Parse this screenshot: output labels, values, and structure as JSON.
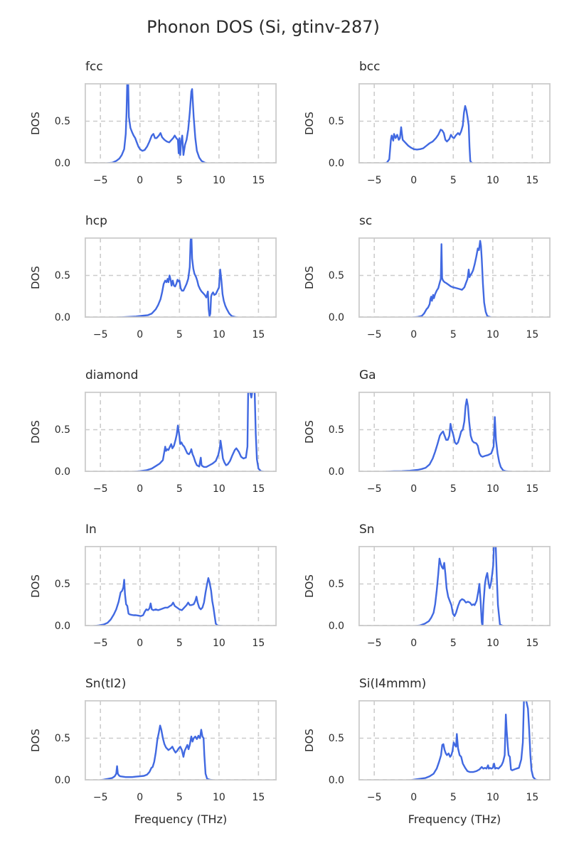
{
  "figure": {
    "title": "Phonon DOS (Si, gtinv-287)",
    "xlabel": "Frequency (THz)",
    "ylabel": "DOS",
    "line_color": "#4169e1",
    "grid_color": "#cccccc",
    "frame_color": "#cccccc",
    "text_color": "#2b2b2b",
    "background": "#ffffff",
    "axes": {
      "xlim": [
        -7,
        17.3
      ],
      "ylim": [
        0,
        0.95
      ],
      "x_tick_values": [
        -5,
        0,
        5,
        10,
        15
      ],
      "x_tick_labels": [
        "−5",
        "0",
        "5",
        "10",
        "15"
      ],
      "y_tick_values": [
        0,
        0.5
      ],
      "y_tick_labels": [
        "0.0",
        "0.5"
      ],
      "grid": true,
      "grid_style": "dashed"
    },
    "layout": "5 rows x 2 columns, shared style, legend none"
  },
  "chart_data": [
    {
      "type": "line",
      "title": "fcc",
      "x": [
        -4.5,
        -3.5,
        -3.0,
        -2.6,
        -2.3,
        -2.0,
        -1.8,
        -1.7,
        -1.6,
        -1.5,
        -1.4,
        -1.2,
        -1.0,
        -0.8,
        -0.6,
        -0.4,
        -0.2,
        0.0,
        0.3,
        0.6,
        0.9,
        1.2,
        1.5,
        1.7,
        1.9,
        2.1,
        2.4,
        2.6,
        2.8,
        3.1,
        3.4,
        3.7,
        4.0,
        4.2,
        4.4,
        4.6,
        4.8,
        4.9,
        5.0,
        5.1,
        5.2,
        5.35,
        5.5,
        5.7,
        5.9,
        6.1,
        6.3,
        6.5,
        6.6,
        6.8,
        7.0,
        7.2,
        7.5,
        7.8,
        8.2,
        8.6,
        9.0
      ],
      "y": [
        0.0,
        0.01,
        0.03,
        0.06,
        0.1,
        0.17,
        0.35,
        0.6,
        1.0,
        1.0,
        0.55,
        0.42,
        0.37,
        0.33,
        0.3,
        0.25,
        0.2,
        0.17,
        0.15,
        0.16,
        0.2,
        0.26,
        0.33,
        0.35,
        0.3,
        0.3,
        0.33,
        0.36,
        0.31,
        0.28,
        0.26,
        0.25,
        0.28,
        0.3,
        0.33,
        0.3,
        0.28,
        0.12,
        0.3,
        0.1,
        0.25,
        0.33,
        0.1,
        0.22,
        0.28,
        0.4,
        0.6,
        0.85,
        0.88,
        0.55,
        0.3,
        0.15,
        0.07,
        0.03,
        0.01,
        0.0,
        0.0
      ]
    },
    {
      "type": "line",
      "title": "bcc",
      "x": [
        -4.0,
        -3.4,
        -3.1,
        -2.9,
        -2.8,
        -2.6,
        -2.5,
        -2.3,
        -2.1,
        -1.9,
        -1.75,
        -1.6,
        -1.5,
        -1.4,
        -1.2,
        -1.0,
        -0.7,
        -0.4,
        0.0,
        0.4,
        0.8,
        1.2,
        1.6,
        2.0,
        2.4,
        2.8,
        3.1,
        3.4,
        3.6,
        3.8,
        4.0,
        4.2,
        4.5,
        4.7,
        4.9,
        5.1,
        5.3,
        5.6,
        5.8,
        6.0,
        6.2,
        6.35,
        6.5,
        6.65,
        6.8,
        6.95,
        7.05,
        7.15,
        7.3,
        7.6,
        8.2
      ],
      "y": [
        0.0,
        0.01,
        0.05,
        0.28,
        0.33,
        0.27,
        0.35,
        0.3,
        0.34,
        0.28,
        0.3,
        0.43,
        0.35,
        0.28,
        0.26,
        0.24,
        0.21,
        0.19,
        0.17,
        0.165,
        0.17,
        0.18,
        0.21,
        0.24,
        0.26,
        0.3,
        0.34,
        0.4,
        0.39,
        0.36,
        0.28,
        0.26,
        0.29,
        0.34,
        0.31,
        0.3,
        0.33,
        0.36,
        0.34,
        0.38,
        0.45,
        0.6,
        0.68,
        0.63,
        0.55,
        0.45,
        0.2,
        0.03,
        0.01,
        0.0,
        0.0
      ]
    },
    {
      "type": "line",
      "title": "hcp",
      "x": [
        -3.5,
        -2.5,
        -1.5,
        -0.5,
        0.0,
        0.5,
        1.0,
        1.5,
        2.0,
        2.3,
        2.6,
        2.8,
        3.0,
        3.2,
        3.35,
        3.5,
        3.6,
        3.75,
        3.9,
        4.0,
        4.15,
        4.3,
        4.45,
        4.6,
        4.75,
        4.9,
        5.0,
        5.15,
        5.3,
        5.5,
        5.7,
        5.9,
        6.1,
        6.3,
        6.4,
        6.5,
        6.6,
        6.75,
        6.9,
        7.1,
        7.25,
        7.4,
        7.6,
        7.8,
        8.0,
        8.2,
        8.4,
        8.6,
        8.7,
        8.8,
        8.9,
        9.0,
        9.1,
        9.25,
        9.4,
        9.6,
        9.8,
        10.0,
        10.15,
        10.3,
        10.45,
        10.6,
        10.8,
        11.0,
        11.3,
        11.6,
        12.0,
        12.5
      ],
      "y": [
        0.0,
        0.005,
        0.01,
        0.015,
        0.02,
        0.025,
        0.03,
        0.05,
        0.1,
        0.15,
        0.22,
        0.3,
        0.4,
        0.44,
        0.42,
        0.46,
        0.42,
        0.5,
        0.44,
        0.38,
        0.44,
        0.38,
        0.37,
        0.4,
        0.45,
        0.43,
        0.44,
        0.35,
        0.32,
        0.32,
        0.36,
        0.4,
        0.46,
        0.6,
        0.9,
        1.0,
        0.7,
        0.58,
        0.52,
        0.48,
        0.44,
        0.38,
        0.34,
        0.31,
        0.29,
        0.27,
        0.24,
        0.31,
        0.1,
        0.02,
        0.05,
        0.25,
        0.28,
        0.3,
        0.27,
        0.28,
        0.32,
        0.36,
        0.57,
        0.45,
        0.28,
        0.2,
        0.14,
        0.1,
        0.05,
        0.02,
        0.01,
        0.0
      ]
    },
    {
      "type": "line",
      "title": "sc",
      "x": [
        -0.5,
        0.5,
        1.0,
        1.3,
        1.6,
        1.8,
        2.0,
        2.1,
        2.2,
        2.3,
        2.45,
        2.55,
        2.7,
        2.9,
        3.1,
        3.3,
        3.42,
        3.5,
        3.58,
        3.7,
        3.9,
        4.1,
        4.4,
        4.7,
        5.0,
        5.4,
        5.8,
        6.1,
        6.4,
        6.6,
        6.8,
        6.95,
        7.05,
        7.15,
        7.3,
        7.5,
        7.7,
        7.9,
        8.1,
        8.25,
        8.4,
        8.5,
        8.6,
        8.75,
        8.9,
        9.1,
        9.3,
        9.6,
        10.0
      ],
      "y": [
        0.0,
        0.01,
        0.02,
        0.05,
        0.1,
        0.12,
        0.16,
        0.22,
        0.25,
        0.2,
        0.27,
        0.23,
        0.28,
        0.32,
        0.35,
        0.42,
        0.46,
        0.87,
        0.47,
        0.44,
        0.42,
        0.41,
        0.39,
        0.37,
        0.36,
        0.35,
        0.34,
        0.33,
        0.36,
        0.41,
        0.46,
        0.57,
        0.48,
        0.5,
        0.52,
        0.56,
        0.63,
        0.72,
        0.82,
        0.8,
        0.91,
        0.85,
        0.7,
        0.4,
        0.18,
        0.07,
        0.02,
        0.01,
        0.0
      ]
    },
    {
      "type": "line",
      "title": "diamond",
      "x": [
        -1.0,
        0.0,
        0.8,
        1.5,
        2.0,
        2.5,
        2.9,
        3.2,
        3.3,
        3.45,
        3.6,
        3.8,
        3.95,
        4.1,
        4.3,
        4.5,
        4.65,
        4.8,
        4.9,
        5.0,
        5.1,
        5.25,
        5.4,
        5.6,
        5.8,
        6.0,
        6.2,
        6.4,
        6.5,
        6.65,
        6.8,
        7.0,
        7.2,
        7.5,
        7.7,
        7.8,
        7.9,
        8.1,
        8.4,
        8.8,
        9.2,
        9.6,
        9.9,
        10.1,
        10.2,
        10.35,
        10.5,
        10.7,
        10.9,
        11.1,
        11.4,
        11.7,
        12.0,
        12.2,
        12.5,
        12.8,
        13.1,
        13.4,
        13.6,
        13.7,
        13.8,
        14.1,
        14.3,
        14.5,
        14.65,
        14.8,
        15.0,
        15.3,
        16.0
      ],
      "y": [
        0.0,
        0.01,
        0.02,
        0.04,
        0.07,
        0.1,
        0.14,
        0.3,
        0.25,
        0.27,
        0.26,
        0.3,
        0.33,
        0.28,
        0.31,
        0.38,
        0.44,
        0.55,
        0.48,
        0.42,
        0.33,
        0.35,
        0.32,
        0.3,
        0.26,
        0.22,
        0.21,
        0.24,
        0.27,
        0.21,
        0.18,
        0.12,
        0.08,
        0.065,
        0.17,
        0.08,
        0.07,
        0.06,
        0.06,
        0.08,
        0.1,
        0.13,
        0.2,
        0.28,
        0.37,
        0.27,
        0.16,
        0.11,
        0.08,
        0.09,
        0.13,
        0.2,
        0.26,
        0.28,
        0.24,
        0.18,
        0.16,
        0.17,
        0.3,
        1.0,
        1.0,
        0.88,
        1.0,
        1.0,
        0.45,
        0.15,
        0.04,
        0.01,
        0.0
      ]
    },
    {
      "type": "line",
      "title": "Ga",
      "x": [
        -3.5,
        -2.5,
        -1.5,
        -0.5,
        0.0,
        0.5,
        1.0,
        1.5,
        2.0,
        2.4,
        2.7,
        3.0,
        3.3,
        3.5,
        3.7,
        3.9,
        4.1,
        4.3,
        4.5,
        4.65,
        4.8,
        5.0,
        5.2,
        5.4,
        5.6,
        5.8,
        6.0,
        6.2,
        6.4,
        6.55,
        6.7,
        6.85,
        7.0,
        7.2,
        7.4,
        7.6,
        7.9,
        8.1,
        8.3,
        8.5,
        8.7,
        9.0,
        9.4,
        9.8,
        10.1,
        10.25,
        10.4,
        10.6,
        10.8,
        11.0,
        11.3,
        11.6,
        12.2,
        12.6
      ],
      "y": [
        0.005,
        0.008,
        0.01,
        0.015,
        0.02,
        0.025,
        0.035,
        0.05,
        0.09,
        0.16,
        0.24,
        0.33,
        0.43,
        0.46,
        0.48,
        0.43,
        0.38,
        0.38,
        0.43,
        0.57,
        0.5,
        0.44,
        0.35,
        0.33,
        0.35,
        0.41,
        0.48,
        0.5,
        0.6,
        0.78,
        0.86,
        0.78,
        0.6,
        0.43,
        0.37,
        0.35,
        0.34,
        0.31,
        0.22,
        0.19,
        0.18,
        0.19,
        0.2,
        0.22,
        0.3,
        0.65,
        0.38,
        0.22,
        0.12,
        0.06,
        0.02,
        0.01,
        0.005,
        0.0
      ]
    },
    {
      "type": "line",
      "title": "In",
      "x": [
        -6.0,
        -5.2,
        -4.6,
        -4.1,
        -3.7,
        -3.3,
        -3.0,
        -2.7,
        -2.45,
        -2.25,
        -2.1,
        -2.0,
        -1.9,
        -1.75,
        -1.6,
        -1.45,
        -1.3,
        -1.1,
        -0.8,
        -0.5,
        -0.2,
        0.1,
        0.4,
        0.6,
        0.8,
        1.0,
        1.2,
        1.35,
        1.5,
        1.7,
        2.0,
        2.3,
        2.6,
        2.9,
        3.2,
        3.5,
        3.8,
        4.0,
        4.2,
        4.4,
        4.7,
        5.0,
        5.3,
        5.6,
        5.9,
        6.1,
        6.3,
        6.5,
        6.8,
        7.0,
        7.15,
        7.3,
        7.5,
        7.7,
        7.9,
        8.1,
        8.3,
        8.5,
        8.65,
        8.8,
        9.0,
        9.15,
        9.3,
        9.45,
        9.6,
        9.8,
        10.2,
        10.8
      ],
      "y": [
        0.0,
        0.01,
        0.02,
        0.04,
        0.08,
        0.14,
        0.2,
        0.29,
        0.4,
        0.42,
        0.46,
        0.55,
        0.38,
        0.26,
        0.24,
        0.15,
        0.14,
        0.135,
        0.13,
        0.13,
        0.125,
        0.12,
        0.13,
        0.17,
        0.2,
        0.19,
        0.21,
        0.27,
        0.2,
        0.19,
        0.2,
        0.19,
        0.2,
        0.21,
        0.22,
        0.22,
        0.24,
        0.25,
        0.28,
        0.24,
        0.22,
        0.2,
        0.19,
        0.22,
        0.25,
        0.28,
        0.25,
        0.25,
        0.26,
        0.3,
        0.35,
        0.28,
        0.22,
        0.2,
        0.22,
        0.28,
        0.4,
        0.5,
        0.57,
        0.52,
        0.42,
        0.3,
        0.22,
        0.12,
        0.03,
        0.01,
        0.005,
        0.0
      ]
    },
    {
      "type": "line",
      "title": "Sn",
      "x": [
        0.0,
        0.8,
        1.4,
        1.9,
        2.2,
        2.5,
        2.7,
        2.9,
        3.1,
        3.25,
        3.4,
        3.55,
        3.7,
        3.85,
        4.0,
        4.15,
        4.35,
        4.55,
        4.75,
        4.95,
        5.15,
        5.35,
        5.6,
        5.85,
        6.1,
        6.35,
        6.6,
        6.85,
        7.1,
        7.35,
        7.55,
        7.7,
        7.95,
        8.15,
        8.3,
        8.45,
        8.6,
        8.7,
        8.8,
        9.0,
        9.15,
        9.3,
        9.45,
        9.6,
        9.75,
        9.9,
        10.05,
        10.15,
        10.35,
        10.5,
        10.65,
        10.9,
        11.4
      ],
      "y": [
        0.0,
        0.01,
        0.03,
        0.06,
        0.1,
        0.16,
        0.26,
        0.42,
        0.62,
        0.8,
        0.74,
        0.7,
        0.68,
        0.75,
        0.62,
        0.45,
        0.35,
        0.3,
        0.25,
        0.15,
        0.12,
        0.16,
        0.24,
        0.3,
        0.32,
        0.31,
        0.28,
        0.29,
        0.28,
        0.25,
        0.26,
        0.25,
        0.3,
        0.4,
        0.5,
        0.3,
        0.05,
        0.0,
        0.25,
        0.5,
        0.58,
        0.63,
        0.52,
        0.45,
        0.5,
        0.6,
        0.72,
        1.0,
        1.0,
        0.6,
        0.25,
        0.02,
        0.0
      ]
    },
    {
      "type": "line",
      "title": "Sn(tI2)",
      "x": [
        -5.3,
        -4.6,
        -4.0,
        -3.5,
        -3.2,
        -3.0,
        -2.9,
        -2.8,
        -2.65,
        -2.5,
        -2.2,
        -1.8,
        -1.4,
        -1.0,
        -0.5,
        0.0,
        0.5,
        0.9,
        1.2,
        1.45,
        1.6,
        1.8,
        2.0,
        2.2,
        2.4,
        2.55,
        2.7,
        2.9,
        3.1,
        3.3,
        3.6,
        3.9,
        4.1,
        4.3,
        4.5,
        4.7,
        4.9,
        5.1,
        5.3,
        5.5,
        5.65,
        5.8,
        6.0,
        6.15,
        6.3,
        6.5,
        6.65,
        6.8,
        7.0,
        7.2,
        7.4,
        7.6,
        7.75,
        7.9,
        8.05,
        8.15,
        8.3,
        8.5,
        8.8,
        9.5
      ],
      "y": [
        0.0,
        0.01,
        0.02,
        0.03,
        0.05,
        0.08,
        0.17,
        0.08,
        0.06,
        0.05,
        0.045,
        0.04,
        0.04,
        0.04,
        0.045,
        0.05,
        0.055,
        0.07,
        0.1,
        0.15,
        0.16,
        0.22,
        0.33,
        0.48,
        0.57,
        0.65,
        0.6,
        0.5,
        0.43,
        0.39,
        0.36,
        0.38,
        0.4,
        0.36,
        0.33,
        0.35,
        0.38,
        0.4,
        0.36,
        0.28,
        0.35,
        0.38,
        0.42,
        0.37,
        0.42,
        0.52,
        0.46,
        0.5,
        0.52,
        0.49,
        0.53,
        0.5,
        0.6,
        0.52,
        0.5,
        0.3,
        0.08,
        0.02,
        0.01,
        0.0
      ]
    },
    {
      "type": "line",
      "title": "Si(I4mmm)",
      "x": [
        -0.7,
        0.0,
        0.8,
        1.5,
        2.0,
        2.5,
        2.9,
        3.2,
        3.45,
        3.6,
        3.75,
        3.9,
        4.05,
        4.2,
        4.4,
        4.6,
        4.75,
        4.9,
        5.05,
        5.2,
        5.35,
        5.45,
        5.6,
        5.8,
        6.0,
        6.2,
        6.5,
        6.8,
        7.1,
        7.5,
        7.9,
        8.3,
        8.6,
        8.8,
        9.0,
        9.2,
        9.4,
        9.5,
        9.65,
        9.8,
        10.0,
        10.15,
        10.3,
        10.5,
        10.7,
        10.9,
        11.1,
        11.3,
        11.5,
        11.65,
        11.75,
        11.9,
        12.0,
        12.15,
        12.3,
        12.45,
        12.7,
        13.0,
        13.3,
        13.6,
        13.8,
        13.95,
        14.1,
        14.45,
        14.6,
        14.75,
        14.9,
        15.1,
        15.4,
        16.0
      ],
      "y": [
        0.0,
        0.01,
        0.02,
        0.03,
        0.05,
        0.08,
        0.14,
        0.22,
        0.3,
        0.42,
        0.43,
        0.36,
        0.32,
        0.3,
        0.32,
        0.28,
        0.3,
        0.35,
        0.45,
        0.42,
        0.4,
        0.55,
        0.38,
        0.3,
        0.28,
        0.2,
        0.15,
        0.11,
        0.1,
        0.1,
        0.11,
        0.13,
        0.16,
        0.14,
        0.15,
        0.14,
        0.18,
        0.14,
        0.15,
        0.14,
        0.15,
        0.2,
        0.14,
        0.15,
        0.14,
        0.16,
        0.18,
        0.22,
        0.3,
        0.78,
        0.6,
        0.4,
        0.3,
        0.28,
        0.13,
        0.12,
        0.13,
        0.14,
        0.15,
        0.25,
        0.45,
        1.0,
        1.0,
        0.85,
        0.6,
        0.3,
        0.12,
        0.04,
        0.01,
        0.0
      ]
    }
  ]
}
